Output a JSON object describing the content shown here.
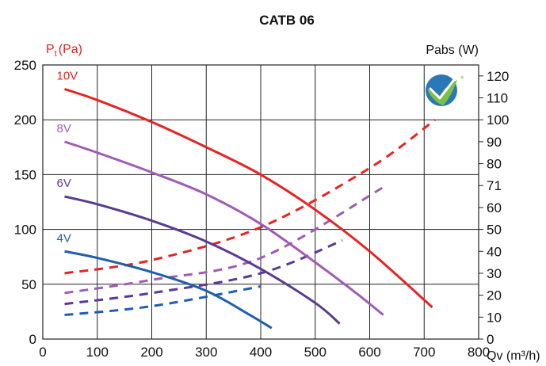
{
  "chart_data": {
    "type": "line",
    "title": "CATB 06",
    "y_left_label": "P",
    "y_left_label_sub": "t",
    "y_left_label_unit": "(Pa)",
    "y_right_label": "Pabs (W)",
    "x_label": "Qv (m³/h)",
    "x_ticks": [
      "0",
      "100",
      "200",
      "300",
      "400",
      "500",
      "600",
      "700",
      "800"
    ],
    "y_left_ticks": [
      "0",
      "50",
      "100",
      "150",
      "200",
      "250"
    ],
    "y_right_ticks": [
      "0",
      "10",
      "20",
      "30",
      "40",
      "50",
      "60",
      "71",
      "80",
      "90",
      "100",
      "110",
      "120"
    ],
    "xlim": [
      0,
      800
    ],
    "ylim_left": [
      0,
      250
    ],
    "grid": true,
    "colors": {
      "10V": "#e52421",
      "8V": "#a05bb5",
      "6V": "#5a3a94",
      "4V": "#1f5fae",
      "axis_label": "#e52421"
    },
    "pressure_series": [
      {
        "name": "10V",
        "x": [
          40,
          100,
          200,
          300,
          400,
          500,
          600,
          715
        ],
        "y": [
          228,
          218,
          198,
          175,
          150,
          118,
          80,
          29
        ]
      },
      {
        "name": "8V",
        "x": [
          40,
          100,
          200,
          300,
          400,
          500,
          575,
          625
        ],
        "y": [
          180,
          170,
          152,
          132,
          105,
          70,
          42,
          22
        ]
      },
      {
        "name": "6V",
        "x": [
          40,
          100,
          200,
          300,
          400,
          500,
          545
        ],
        "y": [
          130,
          123,
          108,
          89,
          64,
          33,
          14
        ]
      },
      {
        "name": "4V",
        "x": [
          40,
          100,
          200,
          300,
          380,
          420
        ],
        "y": [
          80,
          74,
          61,
          44,
          22,
          10
        ]
      }
    ],
    "power_series": [
      {
        "name": "10V",
        "x": [
          40,
          200,
          400,
          600,
          720
        ],
        "y": [
          30,
          36,
          51,
          78,
          100
        ]
      },
      {
        "name": "8V",
        "x": [
          40,
          200,
          400,
          630
        ],
        "y": [
          21,
          27,
          37,
          70
        ]
      },
      {
        "name": "6V",
        "x": [
          40,
          200,
          400,
          550
        ],
        "y": [
          16,
          21,
          30,
          45
        ]
      },
      {
        "name": "4V",
        "x": [
          40,
          200,
          400
        ],
        "y": [
          11,
          15,
          24
        ]
      }
    ]
  },
  "badge": {
    "icon": "certification-check-badge-icon",
    "mark": "*"
  }
}
